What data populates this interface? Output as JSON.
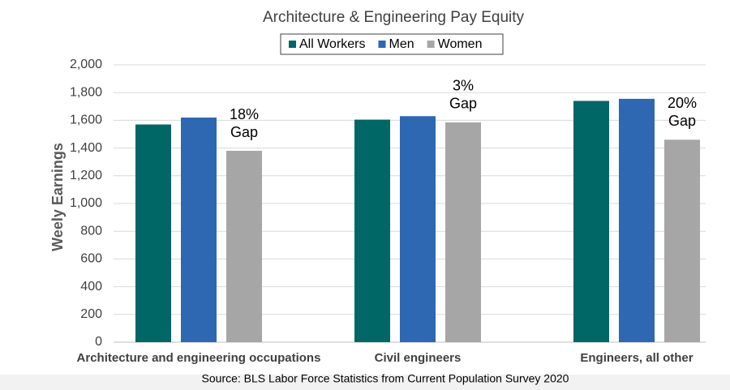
{
  "chart_data": {
    "type": "bar",
    "title": "Architecture & Engineering Pay Equity",
    "y_label": "Weely Earnings",
    "categories": [
      "Architecture and engineering occupations",
      "Civil engineers",
      "Engineers, all other"
    ],
    "series": [
      {
        "name": "All Workers",
        "color": "#006666",
        "values": [
          1570,
          1605,
          1740
        ]
      },
      {
        "name": "Men",
        "color": "#2e67b2",
        "values": [
          1620,
          1630,
          1755
        ]
      },
      {
        "name": "Women",
        "color": "#a6a6a6",
        "values": [
          1380,
          1585,
          1460
        ]
      }
    ],
    "annotations": [
      [
        "18%",
        "Gap"
      ],
      [
        "3%",
        "Gap"
      ],
      [
        "20%",
        "Gap"
      ]
    ],
    "ylim": [
      0,
      2000
    ],
    "yticks": [
      0,
      200,
      400,
      600,
      800,
      {
        "value": 1000,
        "label": "1,000"
      },
      {
        "value": 1200,
        "label": "1,200"
      },
      {
        "value": 1400,
        "label": "1,400"
      },
      {
        "value": 1600,
        "label": "1,600"
      },
      {
        "value": 1800,
        "label": "1,800"
      },
      {
        "value": 2000,
        "label": "2,000"
      }
    ],
    "grid": true,
    "legend": "top",
    "source": "Source: BLS Labor Force Statistics from Current Population Survey 2020"
  }
}
